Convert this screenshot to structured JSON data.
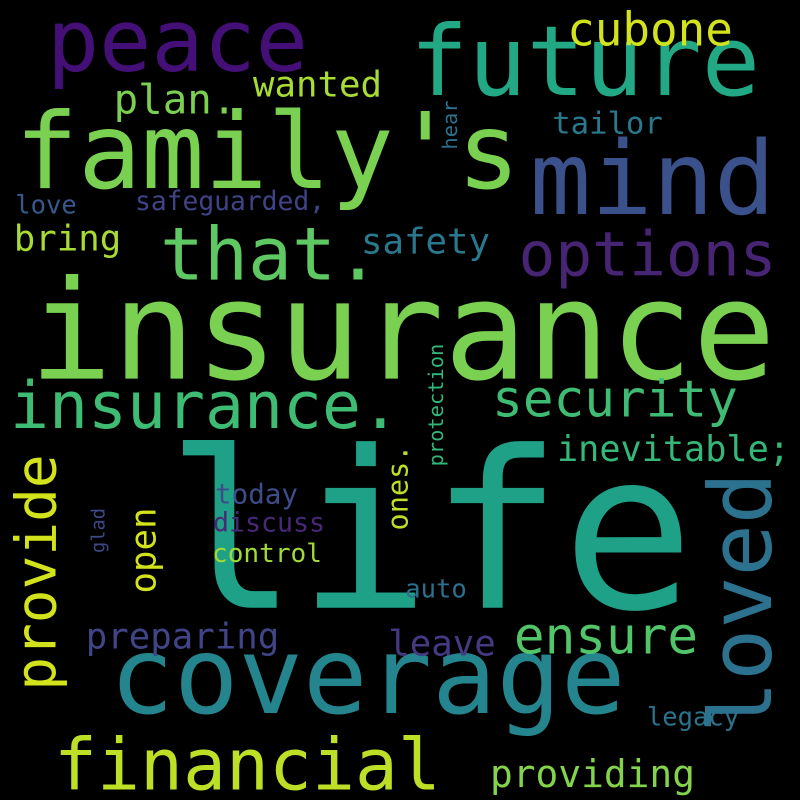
{
  "words": [
    {
      "text": "life",
      "color": "#1fa187"
    },
    {
      "text": "insurance",
      "color": "#7ad151"
    },
    {
      "text": "coverage",
      "color": "#25858e"
    },
    {
      "text": "financial",
      "color": "#bddf26"
    },
    {
      "text": "family's",
      "color": "#7ad151"
    },
    {
      "text": "peace",
      "color": "#440f76"
    },
    {
      "text": "future",
      "color": "#22a884"
    },
    {
      "text": "mind",
      "color": "#3b518b"
    },
    {
      "text": "that.",
      "color": "#5ec962"
    },
    {
      "text": "options",
      "color": "#482475"
    },
    {
      "text": "insurance.",
      "color": "#3fbc73"
    },
    {
      "text": "loved",
      "color": "#2c728e"
    },
    {
      "text": "provide",
      "color": "#d2e21b"
    },
    {
      "text": "security",
      "color": "#3fbc73"
    },
    {
      "text": "ensure",
      "color": "#52c569"
    },
    {
      "text": "cubone",
      "color": "#d2e21b"
    },
    {
      "text": "providing",
      "color": "#84d44b"
    },
    {
      "text": "open",
      "color": "#d2e21b"
    },
    {
      "text": "plan.",
      "color": "#7ad151"
    },
    {
      "text": "wanted",
      "color": "#a8db34"
    },
    {
      "text": "tailor",
      "color": "#2a788e"
    },
    {
      "text": "bring",
      "color": "#a8db34"
    },
    {
      "text": "safety",
      "color": "#2a788e"
    },
    {
      "text": "inevitable;",
      "color": "#35b779"
    },
    {
      "text": "ones.",
      "color": "#bddf26"
    },
    {
      "text": "preparing",
      "color": "#414487"
    },
    {
      "text": "leave",
      "color": "#443983"
    },
    {
      "text": "legacy",
      "color": "#2c728e"
    },
    {
      "text": "protection",
      "color": "#32b67a"
    },
    {
      "text": "hear",
      "color": "#2c728e"
    },
    {
      "text": "safeguarded,",
      "color": "#404387"
    },
    {
      "text": "love",
      "color": "#38588c"
    },
    {
      "text": "today",
      "color": "#3e4c8a"
    },
    {
      "text": "discuss",
      "color": "#482878"
    },
    {
      "text": "control",
      "color": "#a0da39"
    },
    {
      "text": "glad",
      "color": "#3f4889"
    },
    {
      "text": "auto",
      "color": "#2d708e"
    }
  ]
}
